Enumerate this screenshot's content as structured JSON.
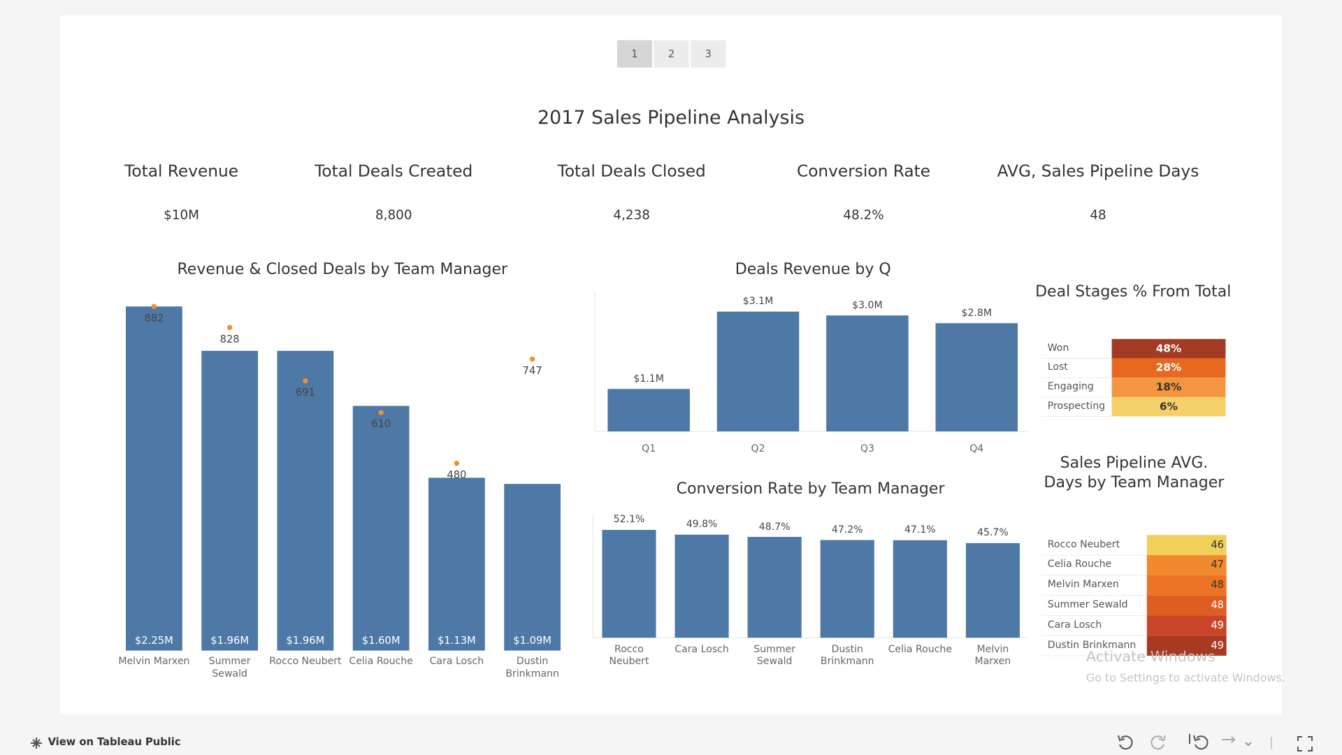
{
  "pager": [
    "1",
    "2",
    "3"
  ],
  "title": "2017 Sales Pipeline Analysis",
  "kpis": [
    {
      "label": "Total Revenue",
      "value": "$10M"
    },
    {
      "label": "Total Deals Created",
      "value": "8,800"
    },
    {
      "label": "Total Deals Closed",
      "value": "4,238"
    },
    {
      "label": "Conversion Rate",
      "value": "48.2%"
    },
    {
      "label": "AVG, Sales Pipeline Days",
      "value": "48"
    }
  ],
  "chart_data": [
    {
      "type": "combo",
      "title": "Revenue & Closed Deals by Team Manager",
      "categories": [
        "Melvin Marxen",
        "Summer Sewald",
        "Rocco Neubert",
        "Celia Rouche",
        "Cara Losch",
        "Dustin Brinkmann"
      ],
      "series": [
        {
          "mark": "bar",
          "color": "#4e79a7",
          "values": [
            2.25,
            1.96,
            1.96,
            1.6,
            1.13,
            1.09
          ],
          "value_labels": [
            "$2.25M",
            "$1.96M",
            "$1.96M",
            "$1.60M",
            "$1.13M",
            "$1.09M"
          ]
        },
        {
          "mark": "dot",
          "color": "#f28e2b",
          "values": [
            882,
            828,
            691,
            610,
            480,
            747
          ]
        }
      ]
    },
    {
      "type": "bar",
      "title": "Deals Revenue by Q",
      "categories": [
        "Q1",
        "Q2",
        "Q3",
        "Q4"
      ],
      "color": "#4e79a7",
      "values": [
        1.1,
        3.1,
        3.0,
        2.8
      ],
      "value_labels": [
        "$1.1M",
        "$3.1M",
        "$3.0M",
        "$2.8M"
      ]
    },
    {
      "type": "bar",
      "title": "Conversion Rate by Team Manager",
      "categories": [
        "Rocco Neubert",
        "Cara Losch",
        "Summer Sewald",
        "Dustin Brinkmann",
        "Celia Rouche",
        "Melvin Marxen"
      ],
      "color": "#4e79a7",
      "values": [
        52.1,
        49.8,
        48.7,
        47.2,
        47.1,
        45.7
      ],
      "value_labels": [
        "52.1%",
        "49.8%",
        "48.7%",
        "47.2%",
        "47.1%",
        "45.7%"
      ]
    },
    {
      "type": "heatmap",
      "title": "Deal Stages % From Total",
      "categories": [
        "Won",
        "Lost",
        "Engaging",
        "Prospecting"
      ],
      "values": [
        48,
        28,
        18,
        6
      ],
      "value_labels": [
        "48%",
        "28%",
        "18%",
        "6%"
      ],
      "colors": [
        "#a33a24",
        "#e8681f",
        "#f3963f",
        "#f5d06a"
      ]
    },
    {
      "type": "heatmap",
      "title": "Sales Pipeline AVG. Days by Team Manager",
      "categories": [
        "Rocco Neubert",
        "Celia Rouche",
        "Melvin Marxen",
        "Summer Sewald",
        "Cara Losch",
        "Dustin Brinkmann"
      ],
      "values": [
        46,
        47,
        48,
        48,
        49,
        49
      ],
      "colors": [
        "#f2cf5b",
        "#f08a2c",
        "#eb7424",
        "#e05d22",
        "#c9452a",
        "#a83a22"
      ]
    }
  ],
  "footer": {
    "link": "View on Tableau Public",
    "watermark": [
      "Activate Windows",
      "Go to Settings to activate Windows."
    ]
  }
}
